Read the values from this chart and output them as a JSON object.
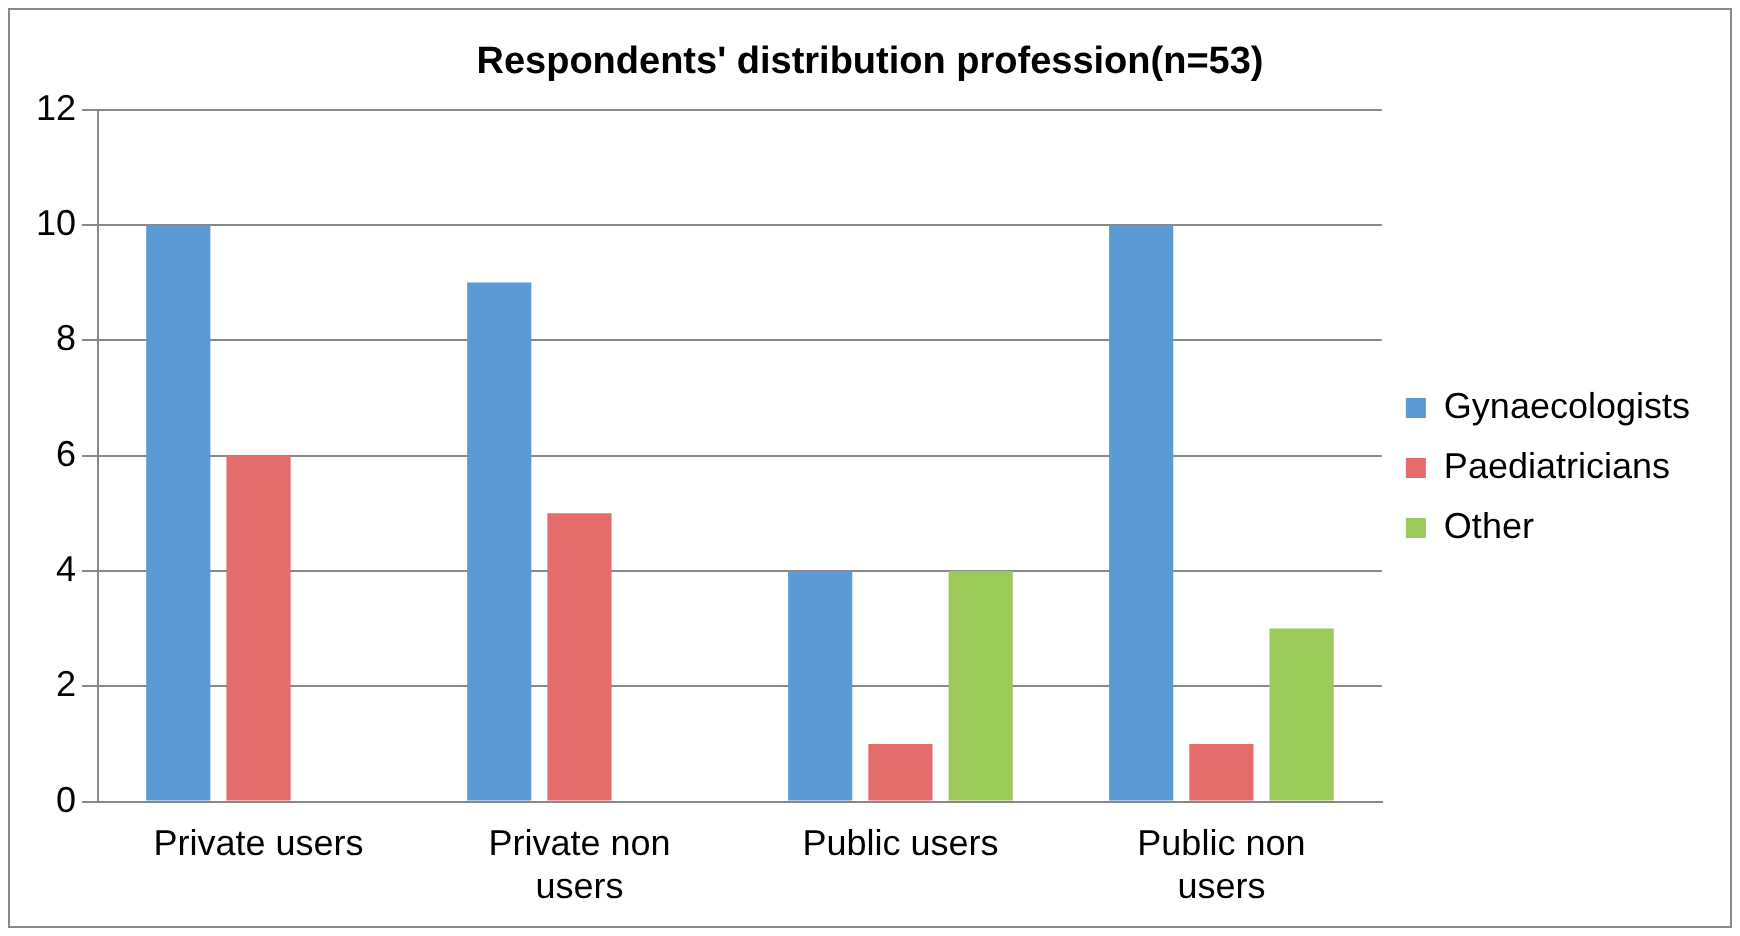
{
  "chart_data": {
    "type": "bar",
    "title": "Respondents' distribution profession(n=53)",
    "categories": [
      "Private users",
      "Private non users",
      "Public users",
      "Public non users"
    ],
    "series": [
      {
        "name": "Gynaecologists",
        "color": "#5b9bd5",
        "values": [
          10,
          9,
          4,
          10
        ]
      },
      {
        "name": "Paediatricians",
        "color": "#e46c6a",
        "values": [
          6,
          5,
          1,
          1
        ]
      },
      {
        "name": "Other",
        "color": "#9bc95a",
        "values": [
          0,
          0,
          4,
          3
        ]
      }
    ],
    "ylim": [
      0,
      12
    ],
    "yticks": [
      0,
      2,
      4,
      6,
      8,
      10,
      12
    ],
    "grid": "y",
    "legend": "right"
  }
}
